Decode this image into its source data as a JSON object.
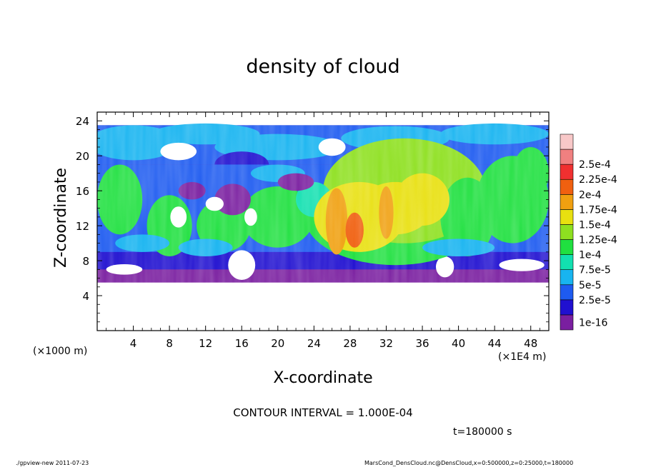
{
  "chart_data": {
    "type": "heatmap",
    "title": "density of cloud",
    "xlabel": "X-coordinate",
    "ylabel": "Z-coordinate",
    "x_unit_label": "(×1E4 m)",
    "y_unit_label": "(×1000 m)",
    "xlim": [
      0,
      50
    ],
    "ylim": [
      0,
      25
    ],
    "x_ticks": [
      4,
      8,
      12,
      16,
      20,
      24,
      28,
      32,
      36,
      40,
      44,
      48
    ],
    "y_ticks": [
      4,
      8,
      12,
      16,
      20,
      24
    ],
    "colorbar": {
      "labels": [
        "1e-16",
        "2.5e-5",
        "5e-5",
        "7.5e-5",
        "1e-4",
        "1.25e-4",
        "1.5e-4",
        "1.75e-4",
        "2e-4",
        "2.25e-4",
        "2.5e-4"
      ],
      "colors": [
        "#7a1fa0",
        "#2010d0",
        "#1e5bf0",
        "#18b4f0",
        "#12e0b0",
        "#20e040",
        "#8ee020",
        "#e8e010",
        "#f0a010",
        "#f06010",
        "#f03030",
        "#f08080",
        "#f8c8c8"
      ]
    },
    "contour_interval_text": "CONTOUR INTERVAL = 1.000E-04",
    "time_text": "t=180000 s",
    "cloud_layer_z": [
      5.5,
      23.5
    ]
  },
  "footer": {
    "program": "./gpview-new  2011-07-23",
    "source": "MarsCond_DensCloud.nc@DensCloud,x=0:500000,z=0:25000,t=180000"
  }
}
